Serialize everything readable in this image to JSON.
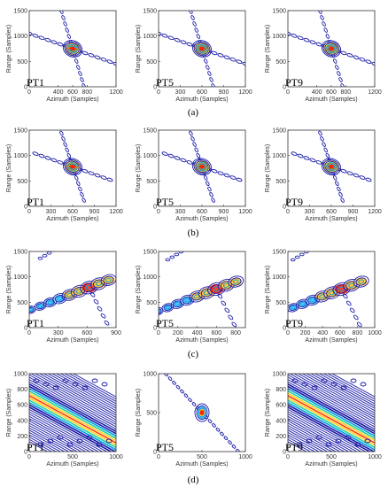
{
  "chart_data": [
    {
      "row": "(a)",
      "type": "contour",
      "panels": [
        {
          "label": "PT1",
          "xlabel": "Azimuth (Samples)",
          "ylabel": "Range (Samples)",
          "xlim": [
            0,
            1200
          ],
          "ylim": [
            0,
            1500
          ],
          "xticks": [
            0,
            400,
            600,
            800,
            1200
          ],
          "yticks": [
            0,
            500,
            1000,
            1500
          ],
          "peak": [
            600,
            750
          ]
        },
        {
          "label": "PT5",
          "xlabel": "Azimuth (Samples)",
          "ylabel": "Range (Samples)",
          "xlim": [
            0,
            1200
          ],
          "ylim": [
            0,
            1500
          ],
          "xticks": [
            0,
            300,
            600,
            900,
            1200
          ],
          "yticks": [
            0,
            500,
            1000,
            1500
          ],
          "peak": [
            600,
            750
          ]
        },
        {
          "label": "PT9",
          "xlabel": "Azimuth (Samples)",
          "ylabel": "Range (Samples)",
          "xlim": [
            0,
            1200
          ],
          "ylim": [
            0,
            1500
          ],
          "xticks": [
            0,
            400,
            600,
            800,
            1200
          ],
          "yticks": [
            0,
            500,
            1000,
            1500
          ],
          "peak": [
            600,
            750
          ]
        }
      ]
    },
    {
      "row": "(b)",
      "type": "contour",
      "panels": [
        {
          "label": "PT1",
          "xlabel": "Azimuth (Samples)",
          "ylabel": "Range (Samples)",
          "xlim": [
            0,
            1200
          ],
          "ylim": [
            0,
            1500
          ],
          "xticks": [
            0,
            300,
            600,
            900,
            1200
          ],
          "yticks": [
            0,
            500,
            1000,
            1500
          ],
          "peak": [
            600,
            780
          ]
        },
        {
          "label": "PT5",
          "xlabel": "Azimuth (Samples)",
          "ylabel": "Range (Samples)",
          "xlim": [
            0,
            1200
          ],
          "ylim": [
            0,
            1500
          ],
          "xticks": [
            0,
            300,
            600,
            900,
            1200
          ],
          "yticks": [
            0,
            500,
            1000,
            1500
          ],
          "peak": [
            600,
            780
          ]
        },
        {
          "label": "PT9",
          "xlabel": "Azimuth (Samples)",
          "ylabel": "Range (Samples)",
          "xlim": [
            0,
            1200
          ],
          "ylim": [
            0,
            1500
          ],
          "xticks": [
            0,
            300,
            600,
            900,
            1200
          ],
          "yticks": [
            0,
            500,
            1000,
            1500
          ],
          "peak": [
            600,
            780
          ]
        }
      ]
    },
    {
      "row": "(c)",
      "type": "contour",
      "panels": [
        {
          "label": "PT1",
          "xlabel": "Azimuth (Samples)",
          "ylabel": "Range (Samples)",
          "xlim": [
            0,
            900
          ],
          "ylim": [
            0,
            1500
          ],
          "xticks": [
            0,
            300,
            600,
            900
          ],
          "yticks": [
            0,
            500,
            1000,
            1500
          ],
          "peak": [
            620,
            790
          ]
        },
        {
          "label": "PT5",
          "xlabel": "Azimuth (Samples)",
          "ylabel": "Range (Samples)",
          "xlim": [
            0,
            900
          ],
          "ylim": [
            0,
            1500
          ],
          "xticks": [
            0,
            200,
            400,
            600,
            800
          ],
          "yticks": [
            0,
            500,
            1000,
            1500
          ],
          "peak": [
            600,
            760
          ]
        },
        {
          "label": "PT9",
          "xlabel": "Azimuth (Samples)",
          "ylabel": "Range (Samples)",
          "xlim": [
            0,
            1000
          ],
          "ylim": [
            0,
            1500
          ],
          "xticks": [
            0,
            200,
            400,
            600,
            800,
            1000
          ],
          "yticks": [
            0,
            500,
            1000,
            1500
          ],
          "peak": [
            620,
            760
          ]
        }
      ]
    },
    {
      "row": "(d)",
      "type": "contour",
      "panels": [
        {
          "label": "PT1",
          "xlabel": "Azimuth (Samples)",
          "ylabel": "Range (Samples)",
          "xlim": [
            0,
            1000
          ],
          "ylim": [
            0,
            1000
          ],
          "xticks": [
            0,
            500,
            1000
          ],
          "yticks": [
            0,
            200,
            400,
            600,
            800,
            1000
          ],
          "peak": [
            500,
            500
          ]
        },
        {
          "label": "PT5",
          "xlabel": "Azimuth (Samples)",
          "ylabel": "Range (Samples)",
          "xlim": [
            0,
            1000
          ],
          "ylim": [
            0,
            1000
          ],
          "xticks": [
            0,
            500,
            1000
          ],
          "yticks": [
            0,
            500,
            1000
          ],
          "peak": [
            500,
            500
          ]
        },
        {
          "label": "PT9",
          "xlabel": "Azimuth (Samples)",
          "ylabel": "Range (Samples)",
          "xlim": [
            0,
            1000
          ],
          "ylim": [
            0,
            1000
          ],
          "xticks": [
            0,
            500,
            1000
          ],
          "yticks": [
            0,
            200,
            400,
            600,
            800,
            1000
          ],
          "peak": [
            500,
            500
          ]
        }
      ]
    }
  ],
  "colors": {
    "contour_outer": "#1a1aa8",
    "contour_mid": "#00a0e0",
    "contour_peak": "#ff2000",
    "axis": "#333333"
  }
}
